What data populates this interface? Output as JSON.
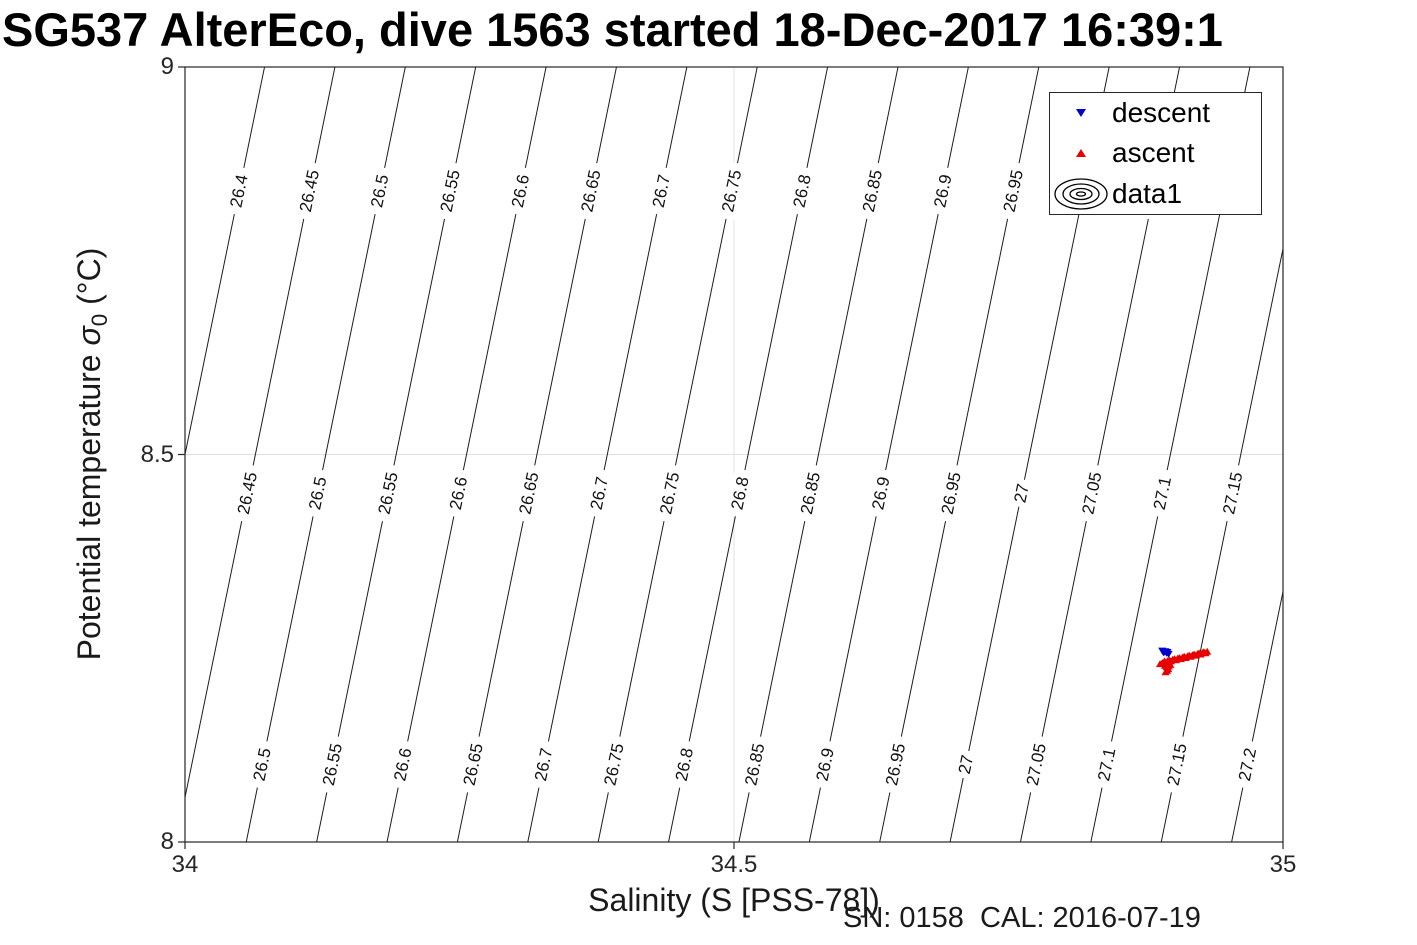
{
  "chart_data": {
    "type": "scatter",
    "title": "SG537 AlterEco, dive 1563 started 18-Dec-2017 16:39:1",
    "xlabel": "Salinity (S [PSS-78])",
    "ylabel": "Potential temperature σ0 (°C)",
    "ylabel_parts": {
      "pre": "Potential temperature ",
      "symbol": "σ",
      "subscript": "0",
      "post": " (°C)"
    },
    "annotation": "SN: 0158  CAL: 2016-07-19",
    "xlim": [
      34,
      35
    ],
    "ylim": [
      8,
      9
    ],
    "x_ticks": [
      {
        "value": 34,
        "label": "34"
      },
      {
        "value": 34.5,
        "label": "34.5"
      },
      {
        "value": 35,
        "label": "35"
      }
    ],
    "y_ticks": [
      {
        "value": 9,
        "label": "9"
      },
      {
        "value": 8.5,
        "label": "8.5"
      },
      {
        "value": 8,
        "label": "8"
      }
    ],
    "grid": {
      "x_values": [
        34.5
      ],
      "y_values": [
        8.5
      ],
      "color": "#e0e0e0"
    },
    "contours": {
      "variable": "potential-density-sigma0-isopycnals",
      "levels": [
        26.4,
        26.45,
        26.5,
        26.55,
        26.6,
        26.65,
        26.7,
        26.75,
        26.8,
        26.85,
        26.9,
        26.95,
        27,
        27.05,
        27.1,
        27.15,
        27.2
      ],
      "label_bands_T": [
        8.84,
        8.45,
        8.1
      ],
      "line_color": "#1c1c1c",
      "label_color": "#111111",
      "model": {
        "sigma_ref": 26.79,
        "S_ref": 34.5,
        "T_ref": 8.5,
        "dSigma_dS": 0.78,
        "dSigma_dT": -0.113
      }
    },
    "series": [
      {
        "name": "descent",
        "marker": "triangle-down",
        "color": "#0000cd",
        "points": [
          [
            34.89,
            8.247
          ],
          [
            34.8922,
            8.2455
          ],
          [
            34.894,
            8.244
          ],
          [
            34.8958,
            8.2428
          ],
          [
            34.893,
            8.2462
          ],
          [
            34.8912,
            8.2446
          ],
          [
            34.8948,
            8.2452
          ]
        ]
      },
      {
        "name": "ascent",
        "marker": "triangle-up",
        "color": "#e60000",
        "points": [
          [
            34.888,
            8.2295
          ],
          [
            34.89,
            8.231
          ],
          [
            34.892,
            8.233
          ],
          [
            34.8935,
            8.2315
          ],
          [
            34.895,
            8.2335
          ],
          [
            34.8965,
            8.2345
          ],
          [
            34.898,
            8.233
          ],
          [
            34.8995,
            8.235
          ],
          [
            34.901,
            8.236
          ],
          [
            34.9025,
            8.2345
          ],
          [
            34.904,
            8.2365
          ],
          [
            34.9055,
            8.2375
          ],
          [
            34.907,
            8.236
          ],
          [
            34.9085,
            8.238
          ],
          [
            34.91,
            8.239
          ],
          [
            34.9115,
            8.2375
          ],
          [
            34.913,
            8.2395
          ],
          [
            34.9145,
            8.2405
          ],
          [
            34.916,
            8.239
          ],
          [
            34.9175,
            8.241
          ],
          [
            34.919,
            8.242
          ],
          [
            34.9205,
            8.2405
          ],
          [
            34.922,
            8.2425
          ],
          [
            34.9235,
            8.2435
          ],
          [
            34.925,
            8.242
          ],
          [
            34.9265,
            8.244
          ],
          [
            34.928,
            8.245
          ],
          [
            34.9295,
            8.2435
          ],
          [
            34.931,
            8.2455
          ],
          [
            34.8925,
            8.2275
          ],
          [
            34.894,
            8.2255
          ],
          [
            34.8955,
            8.223
          ],
          [
            34.8945,
            8.221
          ],
          [
            34.893,
            8.219
          ],
          [
            34.896,
            8.2265
          ],
          [
            34.8975,
            8.2285
          ]
        ]
      }
    ]
  },
  "legend": {
    "items": [
      {
        "label": "descent",
        "marker": "triangle-down",
        "color": "#0000cd"
      },
      {
        "label": "ascent",
        "marker": "triangle-up",
        "color": "#e60000"
      },
      {
        "label": "data1",
        "marker": "contour-rings",
        "color": "#000000"
      }
    ]
  }
}
